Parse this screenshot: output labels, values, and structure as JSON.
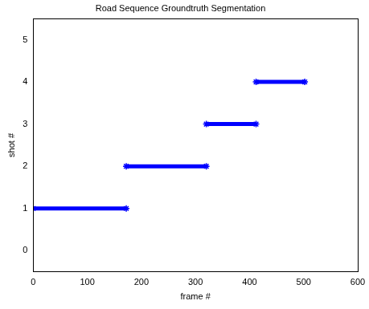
{
  "chart_data": {
    "type": "line",
    "title": "Road Sequence Groundtruth Segmentation",
    "x_label": "frame #",
    "y_label": "shot #",
    "segments": [
      {
        "shot": 1,
        "start": 0,
        "end": 172
      },
      {
        "shot": 2,
        "start": 172,
        "end": 320
      },
      {
        "shot": 3,
        "start": 320,
        "end": 412
      },
      {
        "shot": 4,
        "start": 412,
        "end": 502
      }
    ],
    "color": "#0000ff",
    "marker": "asterisk",
    "xlim": [
      0,
      600
    ],
    "xticks": [
      0,
      100,
      200,
      300,
      400,
      500,
      600
    ],
    "ylim": [
      -0.5,
      5.5
    ],
    "yticks": [
      0,
      1,
      2,
      3,
      4,
      5
    ],
    "grid": false
  }
}
